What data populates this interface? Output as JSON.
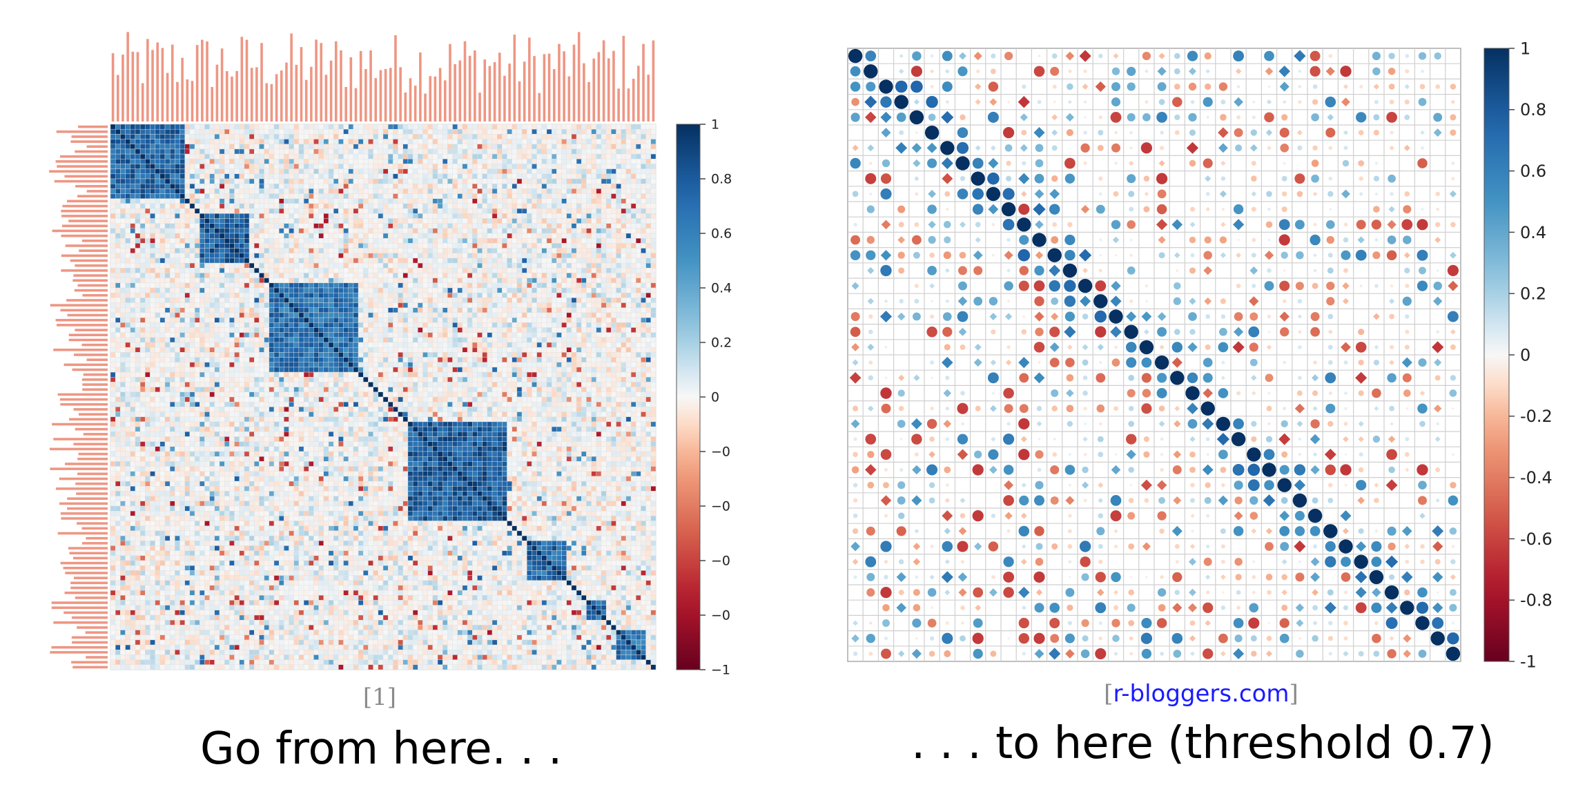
{
  "chart_data": [
    {
      "type": "heatmap",
      "description_kind": "correlation matrix",
      "n_variables": 110,
      "diagonal_value": 1,
      "colorbar": {
        "min": -1,
        "max": 1,
        "ticks": [
          "1",
          "0.8",
          "0.6",
          "0.4",
          "0.2",
          "0",
          "−0.2",
          "−0.4",
          "−0.6",
          "−0.8",
          "−1"
        ],
        "colors": {
          "positive": "#053061",
          "mid": "#ffffff",
          "negative": "#67001f"
        }
      },
      "tick_label_color": "#e8735a",
      "grid": true
    },
    {
      "type": "heatmap",
      "description_kind": "correlation matrix, circle glyphs",
      "n_variables": 40,
      "diagonal_value": 1,
      "colorbar": {
        "min": -1,
        "max": 1,
        "ticks": [
          "1",
          "0.8",
          "0.6",
          "0.4",
          "0.2",
          "0",
          "-0.2",
          "-0.4",
          "-0.6",
          "-0.8",
          "-1"
        ]
      },
      "grid": true
    }
  ],
  "left": {
    "source": "[1]",
    "caption": "Go from here. . ."
  },
  "right": {
    "source_open": "[",
    "source_link": "r-bloggers.com",
    "source_close": "]",
    "caption": ". . . to here (threshold 0.7)"
  }
}
